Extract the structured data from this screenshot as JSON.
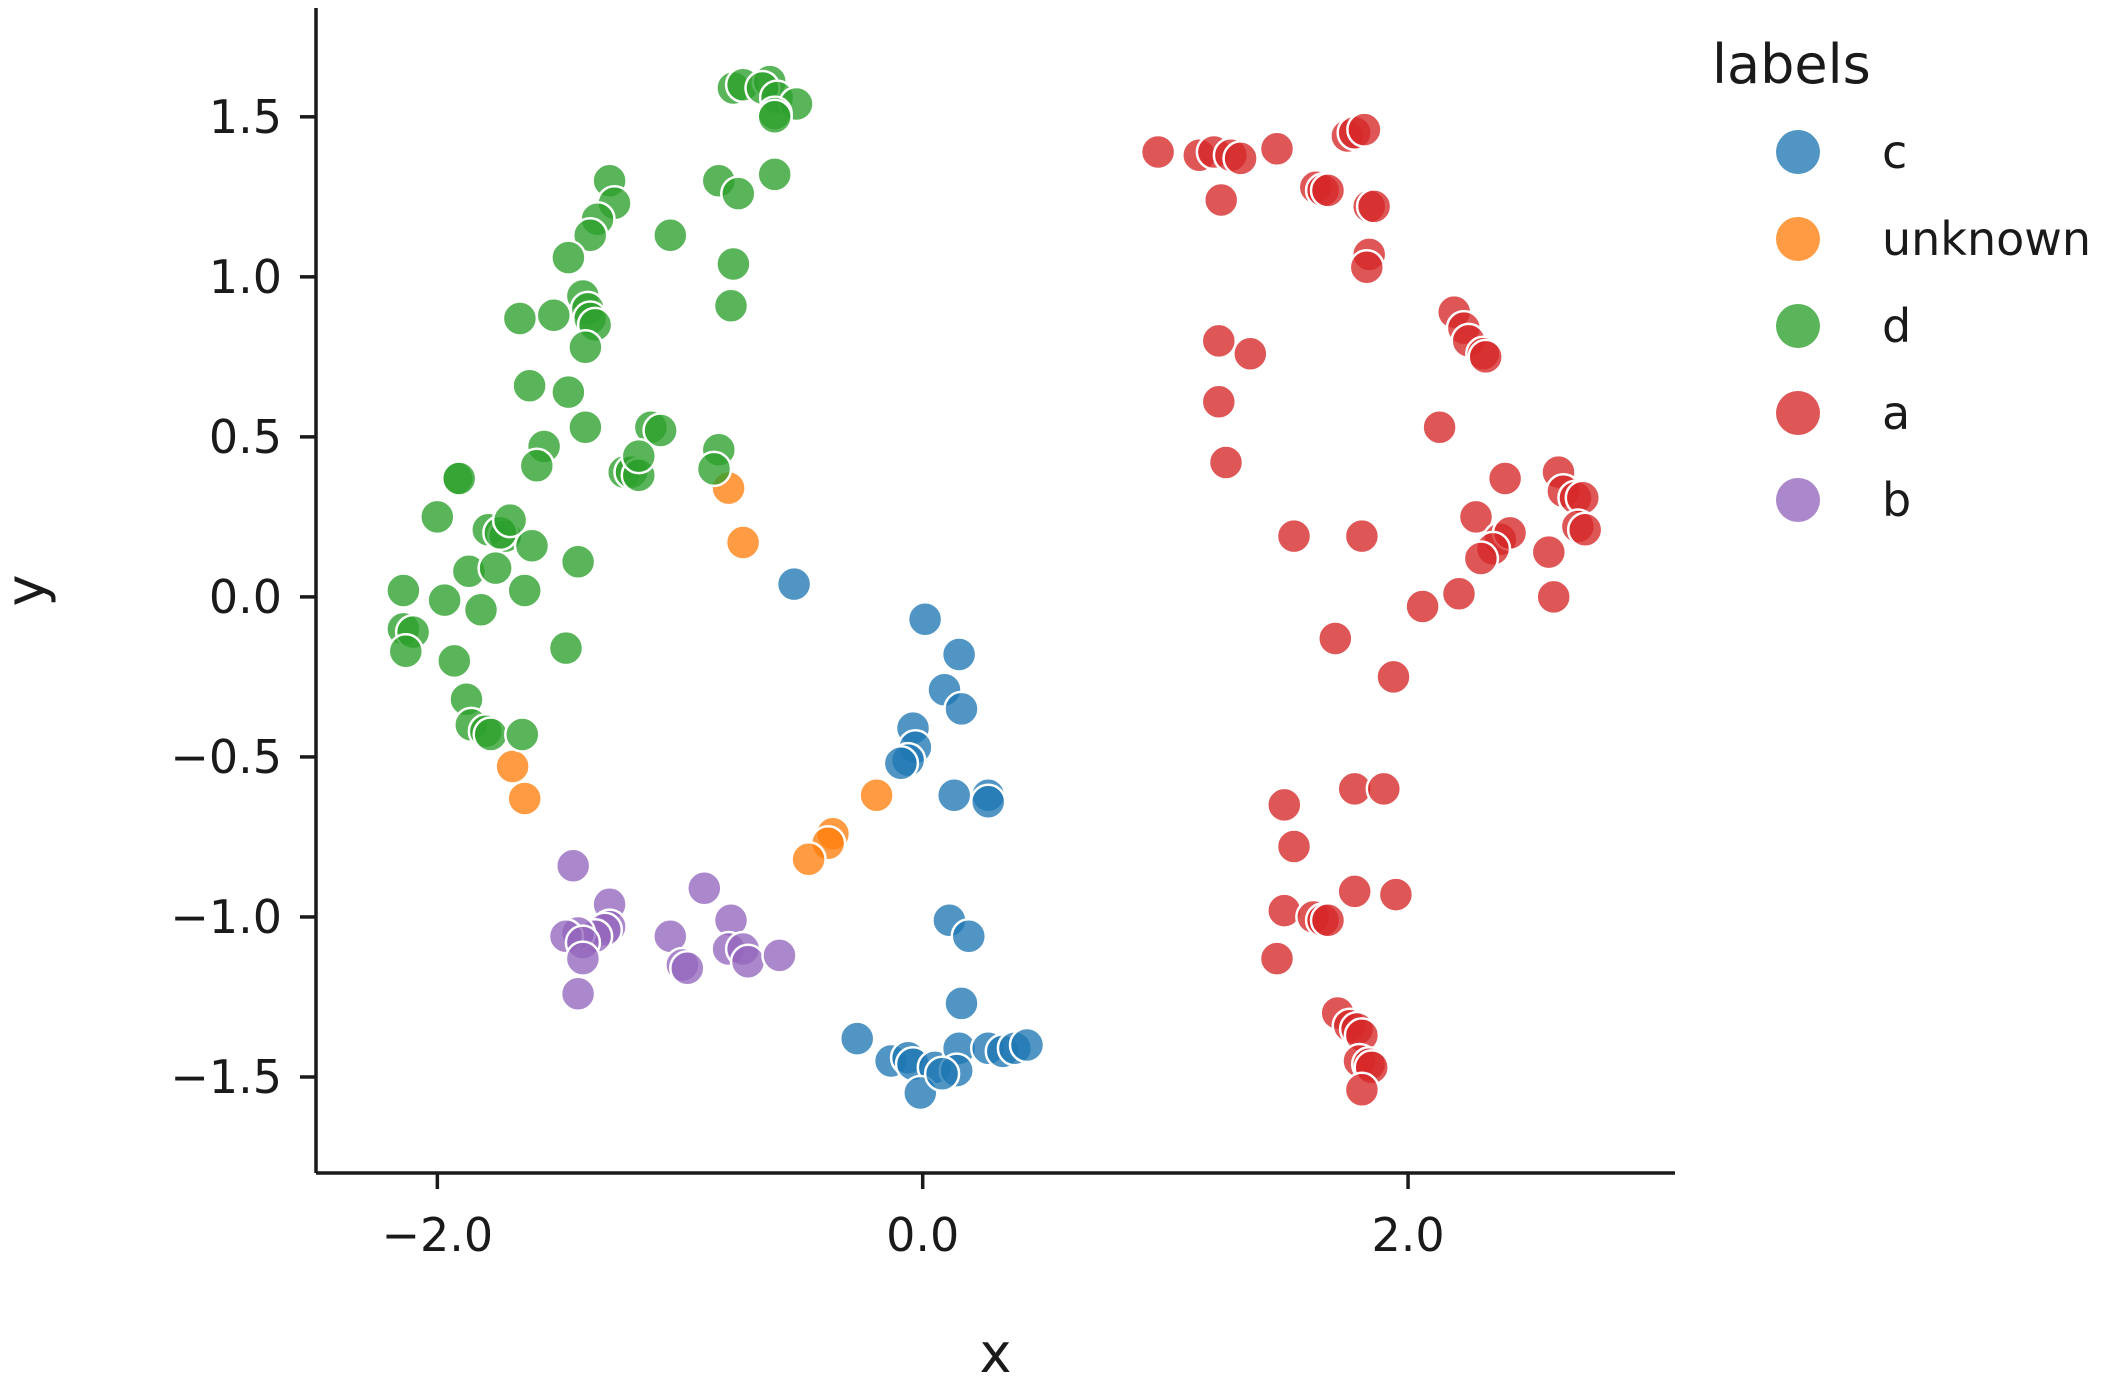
{
  "chart_data": {
    "type": "scatter",
    "xlabel": "x",
    "ylabel": "y",
    "xlim": [
      -2.5,
      3.1
    ],
    "ylim": [
      -1.8,
      1.84
    ],
    "xticks": [
      -2.0,
      0.0,
      2.0
    ],
    "xtick_labels": [
      "−2.0",
      "0.0",
      "2.0"
    ],
    "yticks": [
      -1.5,
      -1.0,
      -0.5,
      0.0,
      0.5,
      1.0,
      1.5
    ],
    "ytick_labels": [
      "−1.5",
      "−1.0",
      "−0.5",
      "0.0",
      "0.5",
      "1.0",
      "1.5"
    ],
    "grid": false,
    "legend": {
      "title": "labels",
      "placement": "outside-right"
    },
    "series": [
      {
        "name": "c",
        "color": "#1f77b4",
        "points": [
          [
            -0.53,
            0.04
          ],
          [
            0.01,
            -0.07
          ],
          [
            0.15,
            -0.18
          ],
          [
            0.09,
            -0.29
          ],
          [
            0.16,
            -0.35
          ],
          [
            -0.04,
            -0.41
          ],
          [
            -0.03,
            -0.47
          ],
          [
            -0.06,
            -0.51
          ],
          [
            -0.09,
            -0.52
          ],
          [
            0.13,
            -0.62
          ],
          [
            0.27,
            -0.62
          ],
          [
            0.27,
            -0.64
          ],
          [
            0.11,
            -1.01
          ],
          [
            0.19,
            -1.06
          ],
          [
            0.16,
            -1.27
          ],
          [
            -0.27,
            -1.38
          ],
          [
            -0.13,
            -1.45
          ],
          [
            -0.06,
            -1.44
          ],
          [
            -0.04,
            -1.46
          ],
          [
            0.05,
            -1.47
          ],
          [
            0.15,
            -1.41
          ],
          [
            0.14,
            -1.48
          ],
          [
            0.27,
            -1.41
          ],
          [
            0.33,
            -1.42
          ],
          [
            0.38,
            -1.41
          ],
          [
            0.43,
            -1.4
          ],
          [
            -0.01,
            -1.55
          ],
          [
            0.08,
            -1.49
          ]
        ]
      },
      {
        "name": "unknown",
        "color": "#ff7f0e",
        "points": [
          [
            -0.8,
            0.34
          ],
          [
            -0.74,
            0.17
          ],
          [
            -1.69,
            -0.53
          ],
          [
            -1.64,
            -0.63
          ],
          [
            -0.19,
            -0.62
          ],
          [
            -0.37,
            -0.74
          ],
          [
            -0.39,
            -0.77
          ],
          [
            -0.47,
            -0.82
          ]
        ]
      },
      {
        "name": "d",
        "color": "#2ca02c",
        "points": [
          [
            -0.78,
            1.59
          ],
          [
            -0.74,
            1.6
          ],
          [
            -0.63,
            1.61
          ],
          [
            -0.66,
            1.59
          ],
          [
            -0.6,
            1.56
          ],
          [
            -0.52,
            1.54
          ],
          [
            -0.61,
            1.51
          ],
          [
            -0.61,
            1.5
          ],
          [
            -0.61,
            1.32
          ],
          [
            -0.84,
            1.3
          ],
          [
            -0.76,
            1.26
          ],
          [
            -1.29,
            1.3
          ],
          [
            -1.27,
            1.23
          ],
          [
            -1.34,
            1.18
          ],
          [
            -1.37,
            1.13
          ],
          [
            -1.46,
            1.06
          ],
          [
            -1.04,
            1.13
          ],
          [
            -0.78,
            1.04
          ],
          [
            -0.79,
            0.91
          ],
          [
            -1.4,
            0.94
          ],
          [
            -1.38,
            0.9
          ],
          [
            -1.37,
            0.87
          ],
          [
            -1.35,
            0.85
          ],
          [
            -1.39,
            0.78
          ],
          [
            -1.52,
            0.88
          ],
          [
            -1.66,
            0.87
          ],
          [
            -1.62,
            0.66
          ],
          [
            -1.46,
            0.64
          ],
          [
            -1.39,
            0.53
          ],
          [
            -1.12,
            0.53
          ],
          [
            -1.08,
            0.52
          ],
          [
            -0.84,
            0.46
          ],
          [
            -0.86,
            0.4
          ],
          [
            -1.56,
            0.47
          ],
          [
            -1.59,
            0.41
          ],
          [
            -1.23,
            0.39
          ],
          [
            -1.2,
            0.39
          ],
          [
            -1.17,
            0.38
          ],
          [
            -1.17,
            0.44
          ],
          [
            -1.92,
            0.37
          ],
          [
            -1.91,
            0.37
          ],
          [
            -2.0,
            0.25
          ],
          [
            -1.79,
            0.21
          ],
          [
            -1.72,
            0.19
          ],
          [
            -1.74,
            0.2
          ],
          [
            -1.7,
            0.24
          ],
          [
            -1.61,
            0.16
          ],
          [
            -1.42,
            0.11
          ],
          [
            -1.87,
            0.08
          ],
          [
            -1.76,
            0.09
          ],
          [
            -2.14,
            0.02
          ],
          [
            -1.97,
            -0.01
          ],
          [
            -1.64,
            0.02
          ],
          [
            -1.82,
            -0.04
          ],
          [
            -2.14,
            -0.1
          ],
          [
            -2.1,
            -0.11
          ],
          [
            -2.13,
            -0.17
          ],
          [
            -1.47,
            -0.16
          ],
          [
            -1.93,
            -0.2
          ],
          [
            -1.88,
            -0.32
          ],
          [
            -1.86,
            -0.4
          ],
          [
            -1.8,
            -0.42
          ],
          [
            -1.78,
            -0.43
          ],
          [
            -1.65,
            -0.43
          ]
        ]
      },
      {
        "name": "a",
        "color": "#d62728",
        "points": [
          [
            0.97,
            1.39
          ],
          [
            1.14,
            1.38
          ],
          [
            1.2,
            1.39
          ],
          [
            1.27,
            1.38
          ],
          [
            1.31,
            1.37
          ],
          [
            1.46,
            1.4
          ],
          [
            1.75,
            1.44
          ],
          [
            1.78,
            1.45
          ],
          [
            1.82,
            1.46
          ],
          [
            1.62,
            1.28
          ],
          [
            1.65,
            1.27
          ],
          [
            1.67,
            1.27
          ],
          [
            1.84,
            1.22
          ],
          [
            1.86,
            1.22
          ],
          [
            1.23,
            1.24
          ],
          [
            1.84,
            1.07
          ],
          [
            1.83,
            1.03
          ],
          [
            2.19,
            0.89
          ],
          [
            2.23,
            0.84
          ],
          [
            2.25,
            0.8
          ],
          [
            2.31,
            0.76
          ],
          [
            2.32,
            0.75
          ],
          [
            1.22,
            0.8
          ],
          [
            1.35,
            0.76
          ],
          [
            1.22,
            0.61
          ],
          [
            2.13,
            0.53
          ],
          [
            1.25,
            0.42
          ],
          [
            2.62,
            0.39
          ],
          [
            2.4,
            0.37
          ],
          [
            2.64,
            0.33
          ],
          [
            2.69,
            0.31
          ],
          [
            2.72,
            0.31
          ],
          [
            2.28,
            0.25
          ],
          [
            2.38,
            0.18
          ],
          [
            2.42,
            0.2
          ],
          [
            2.35,
            0.15
          ],
          [
            2.3,
            0.12
          ],
          [
            2.7,
            0.22
          ],
          [
            2.73,
            0.21
          ],
          [
            1.53,
            0.19
          ],
          [
            1.81,
            0.19
          ],
          [
            2.58,
            0.14
          ],
          [
            2.21,
            0.01
          ],
          [
            2.06,
            -0.03
          ],
          [
            2.6,
            0.0
          ],
          [
            1.7,
            -0.13
          ],
          [
            1.94,
            -0.25
          ],
          [
            1.78,
            -0.6
          ],
          [
            1.9,
            -0.6
          ],
          [
            1.49,
            -0.65
          ],
          [
            1.53,
            -0.78
          ],
          [
            1.78,
            -0.92
          ],
          [
            1.95,
            -0.93
          ],
          [
            1.49,
            -0.98
          ],
          [
            1.61,
            -1.0
          ],
          [
            1.65,
            -1.01
          ],
          [
            1.67,
            -1.01
          ],
          [
            1.46,
            -1.13
          ],
          [
            1.71,
            -1.3
          ],
          [
            1.76,
            -1.34
          ],
          [
            1.79,
            -1.35
          ],
          [
            1.81,
            -1.37
          ],
          [
            1.8,
            -1.45
          ],
          [
            1.84,
            -1.46
          ],
          [
            1.85,
            -1.47
          ],
          [
            1.81,
            -1.54
          ]
        ]
      },
      {
        "name": "b",
        "color": "#9467bd",
        "points": [
          [
            -1.44,
            -0.84
          ],
          [
            -0.9,
            -0.91
          ],
          [
            -1.29,
            -0.96
          ],
          [
            -1.29,
            -1.03
          ],
          [
            -1.31,
            -1.04
          ],
          [
            -1.35,
            -1.06
          ],
          [
            -1.42,
            -1.05
          ],
          [
            -1.47,
            -1.06
          ],
          [
            -1.4,
            -1.08
          ],
          [
            -1.4,
            -1.13
          ],
          [
            -0.79,
            -1.01
          ],
          [
            -1.04,
            -1.06
          ],
          [
            -0.8,
            -1.1
          ],
          [
            -0.74,
            -1.1
          ],
          [
            -0.99,
            -1.15
          ],
          [
            -0.97,
            -1.16
          ],
          [
            -0.72,
            -1.14
          ],
          [
            -0.59,
            -1.12
          ],
          [
            -1.42,
            -1.24
          ]
        ]
      }
    ]
  }
}
